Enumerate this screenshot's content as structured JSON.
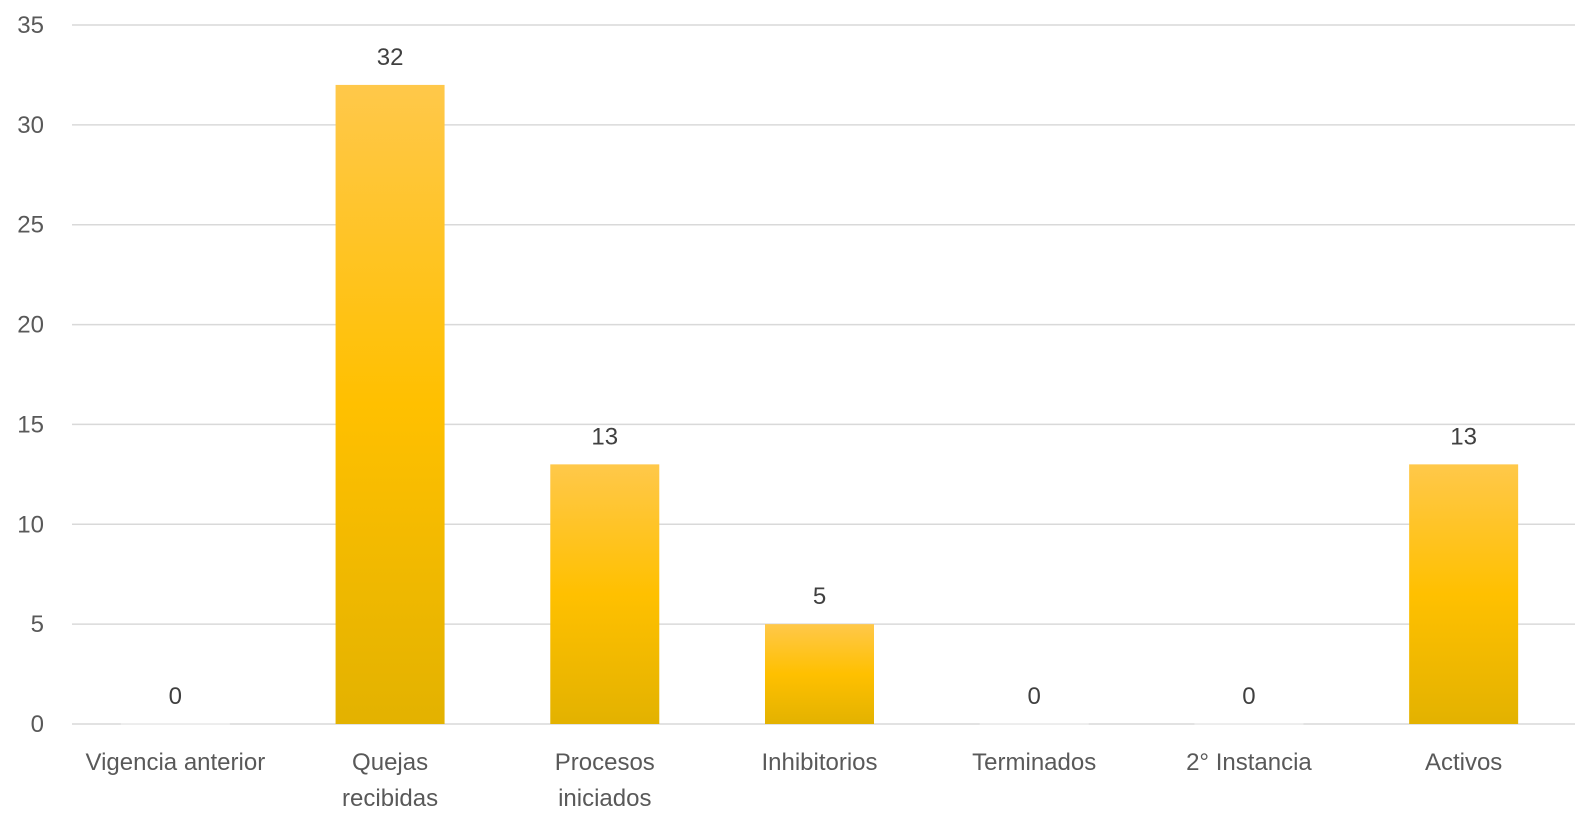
{
  "chart_data": {
    "type": "bar",
    "categories": [
      [
        "Vigencia anterior"
      ],
      [
        "Quejas",
        "recibidas"
      ],
      [
        "Procesos",
        "iniciados"
      ],
      [
        "Inhibitorios"
      ],
      [
        "Terminados"
      ],
      [
        "2° Instancia"
      ],
      [
        "Activos"
      ]
    ],
    "values": [
      0,
      32,
      13,
      5,
      0,
      0,
      13
    ],
    "ylim": [
      0,
      35
    ],
    "yticks": [
      0,
      5,
      10,
      15,
      20,
      25,
      30,
      35
    ],
    "grid": true,
    "legend": "none",
    "colors": {
      "bar_top": "#ffc84a",
      "bar_mid": "#ffc000",
      "bar_bottom": "#e3b200",
      "gridline": "#d9d9d9",
      "axis_text": "#595959"
    }
  }
}
